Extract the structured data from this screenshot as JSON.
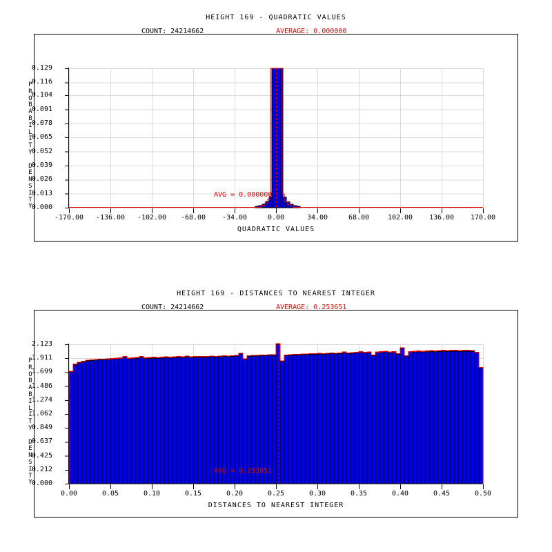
{
  "colors": {
    "background": "#ffffff",
    "bar_fill": "#0000ee",
    "bar_edge": "#000000",
    "curve_red": "#e30000",
    "grid": "#d9d9d9",
    "text": "#000000"
  },
  "charts": [
    {
      "title": "HEIGHT 169 - QUADRATIC VALUES",
      "count_label": "COUNT: 24214662",
      "average_label": "AVERAGE: 0.000000",
      "avg_annotation": "AVG = 0.000000",
      "xlabel": "QUADRATIC VALUES",
      "ylabel": "PROBABILITY DENSITY",
      "chart_data": {
        "type": "bar",
        "subtype": "histogram-with-fit-curve",
        "xlim": [
          -170,
          170
        ],
        "ylim": [
          0,
          0.129
        ],
        "grid": true,
        "x_tick_values": [
          -170,
          -136,
          -102,
          -68,
          -34,
          0,
          34,
          68,
          102,
          136,
          170
        ],
        "x_tick_labels": [
          "-170.00",
          "-136.00",
          "-102.00",
          "-68.00",
          "-34.00",
          "0.00",
          "34.00",
          "68.00",
          "102.00",
          "136.00",
          "170.00"
        ],
        "y_tick_values": [
          0.129,
          0.116,
          0.104,
          0.091,
          0.078,
          0.065,
          0.052,
          0.039,
          0.026,
          0.013,
          0.0
        ],
        "y_tick_labels": [
          "0.129",
          "0.116",
          "0.104",
          "0.091",
          "0.078",
          "0.065",
          "0.052",
          "0.039",
          "0.026",
          "0.013",
          "0.000"
        ],
        "average": 0.0,
        "bars": [
          [
            -17.0,
            -14.2,
            0.0013
          ],
          [
            -14.2,
            -11.3,
            0.0018
          ],
          [
            -11.3,
            -8.5,
            0.0032
          ],
          [
            -8.5,
            -5.7,
            0.0058
          ],
          [
            -5.7,
            -3.4,
            0.0098
          ],
          [
            -3.4,
            0.0,
            0.14
          ],
          [
            0.0,
            3.4,
            0.14
          ],
          [
            3.4,
            5.7,
            0.14
          ],
          [
            5.7,
            8.5,
            0.0098
          ],
          [
            8.5,
            11.3,
            0.0055
          ],
          [
            11.3,
            14.2,
            0.0033
          ],
          [
            14.2,
            17.0,
            0.0018
          ],
          [
            17.0,
            19.8,
            0.0012
          ]
        ],
        "curve_points": [
          [
            -170,
            0.0004
          ],
          [
            -12.5,
            0.0004
          ],
          [
            -12.5,
            0.0021
          ],
          [
            -9.1,
            0.0021
          ],
          [
            -9.1,
            0.0045
          ],
          [
            -6.8,
            0.0045
          ],
          [
            -6.8,
            0.008
          ],
          [
            -5.1,
            0.008
          ],
          [
            -5.1,
            0.0127
          ],
          [
            -4.5,
            0.0127
          ],
          [
            -4.5,
            0.14
          ],
          [
            5.1,
            0.14
          ],
          [
            5.1,
            0.0127
          ],
          [
            6.8,
            0.0127
          ],
          [
            6.8,
            0.0055
          ],
          [
            9.1,
            0.0055
          ],
          [
            9.1,
            0.0033
          ],
          [
            11.9,
            0.0033
          ],
          [
            11.9,
            0.0016
          ],
          [
            14.2,
            0.0016
          ],
          [
            14.2,
            0.0004
          ],
          [
            170,
            0.0004
          ]
        ]
      }
    },
    {
      "title": "HEIGHT 169 - DISTANCES TO NEAREST INTEGER",
      "count_label": "COUNT: 24214662",
      "average_label": "AVERAGE: 0.253651",
      "avg_annotation": "AVG = 0.253651",
      "xlabel": "DISTANCES TO NEAREST INTEGER",
      "ylabel": "PROBABILITY DENSITY",
      "chart_data": {
        "type": "bar",
        "subtype": "histogram-with-fit-curve",
        "xlim": [
          0,
          0.5
        ],
        "ylim": [
          0,
          2.123
        ],
        "grid": true,
        "x_tick_values": [
          0.0,
          0.05,
          0.1,
          0.15,
          0.2,
          0.25,
          0.3,
          0.35,
          0.4,
          0.45,
          0.5
        ],
        "x_tick_labels": [
          "0.00",
          "0.05",
          "0.10",
          "0.15",
          "0.20",
          "0.25",
          "0.30",
          "0.35",
          "0.40",
          "0.45",
          "0.50"
        ],
        "y_tick_values": [
          2.123,
          1.911,
          1.699,
          1.486,
          1.274,
          1.062,
          0.849,
          0.637,
          0.425,
          0.212,
          0.0
        ],
        "y_tick_labels": [
          "2.123",
          "1.911",
          "1.699",
          "1.486",
          "1.274",
          "1.062",
          "0.849",
          "0.637",
          "0.425",
          "0.212",
          "0.000"
        ],
        "average": 0.253651,
        "bin_start": 0.0,
        "bin_width": 0.005,
        "heights": [
          1.7,
          1.81,
          1.84,
          1.855,
          1.87,
          1.875,
          1.88,
          1.885,
          1.885,
          1.89,
          1.895,
          1.9,
          1.905,
          1.925,
          1.9,
          1.905,
          1.91,
          1.925,
          1.905,
          1.91,
          1.915,
          1.91,
          1.915,
          1.92,
          1.915,
          1.92,
          1.925,
          1.92,
          1.935,
          1.92,
          1.925,
          1.93,
          1.925,
          1.93,
          1.935,
          1.93,
          1.935,
          1.94,
          1.935,
          1.94,
          1.945,
          1.975,
          1.89,
          1.94,
          1.945,
          1.945,
          1.95,
          1.95,
          1.955,
          1.955,
          2.12,
          1.86,
          1.95,
          1.955,
          1.96,
          1.96,
          1.965,
          1.965,
          1.97,
          1.97,
          1.975,
          1.97,
          1.975,
          1.98,
          1.975,
          1.98,
          1.995,
          1.98,
          1.985,
          1.99,
          2.0,
          1.99,
          1.995,
          1.95,
          1.995,
          2.0,
          2.005,
          1.995,
          2.0,
          1.97,
          2.06,
          1.94,
          2.0,
          2.005,
          2.01,
          2.005,
          2.01,
          2.015,
          2.01,
          2.015,
          2.02,
          2.015,
          2.02,
          2.02,
          2.015,
          2.02,
          2.02,
          2.015,
          1.99,
          1.76
        ],
        "curve_follows_bars": true
      }
    }
  ]
}
